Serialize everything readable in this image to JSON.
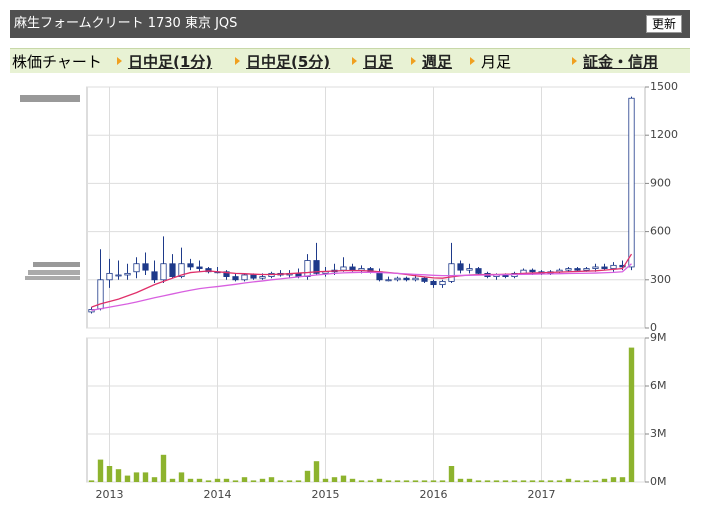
{
  "header": {
    "title": "麻生フォームクリート 1730 東京 JQS",
    "button": "更新"
  },
  "tabs": [
    "株価チャート",
    "日中足(1分)",
    "日中足(5分)",
    "日足",
    "週足",
    "月足",
    "証金・信用"
  ],
  "chart_data": [
    {
      "type": "candlestick",
      "ylim": [
        0,
        1500
      ],
      "yticks": [
        0,
        300,
        600,
        900,
        1200,
        1500
      ],
      "grid": true,
      "up_color": "#ffffff",
      "down_color": "#1e3a8a",
      "edge_color": "#1e3a8a",
      "open": [
        100,
        120,
        300,
        330,
        330,
        350,
        400,
        350,
        300,
        400,
        320,
        400,
        380,
        370,
        350,
        350,
        320,
        300,
        330,
        310,
        320,
        340,
        330,
        340,
        320,
        420,
        340,
        350,
        360,
        380,
        360,
        370,
        350,
        300,
        300,
        310,
        300,
        310,
        290,
        270,
        290,
        400,
        360,
        370,
        340,
        320,
        330,
        320,
        340,
        360,
        350,
        340,
        350,
        360,
        370,
        360,
        370,
        380,
        370,
        390,
        380
      ],
      "high": [
        130,
        490,
        430,
        420,
        400,
        440,
        470,
        420,
        570,
        460,
        500,
        430,
        420,
        380,
        380,
        360,
        340,
        340,
        340,
        340,
        350,
        360,
        360,
        370,
        460,
        530,
        380,
        400,
        440,
        400,
        390,
        380,
        370,
        320,
        320,
        320,
        330,
        320,
        300,
        300,
        530,
        420,
        400,
        380,
        350,
        340,
        340,
        350,
        370,
        370,
        360,
        360,
        370,
        380,
        380,
        380,
        400,
        400,
        410,
        420,
        1440
      ],
      "low": [
        90,
        110,
        250,
        300,
        300,
        310,
        330,
        280,
        280,
        310,
        310,
        360,
        350,
        340,
        340,
        300,
        290,
        290,
        300,
        300,
        310,
        320,
        310,
        310,
        300,
        330,
        320,
        330,
        350,
        350,
        340,
        340,
        290,
        290,
        290,
        290,
        290,
        280,
        250,
        250,
        280,
        340,
        340,
        330,
        310,
        300,
        310,
        310,
        330,
        330,
        330,
        330,
        340,
        350,
        350,
        350,
        350,
        360,
        350,
        360,
        360
      ],
      "close": [
        115,
        300,
        340,
        330,
        340,
        400,
        360,
        300,
        400,
        320,
        400,
        380,
        370,
        350,
        350,
        320,
        300,
        330,
        310,
        320,
        340,
        330,
        340,
        320,
        420,
        340,
        350,
        360,
        380,
        360,
        370,
        350,
        300,
        300,
        310,
        300,
        310,
        290,
        270,
        290,
        400,
        360,
        370,
        340,
        320,
        330,
        320,
        340,
        360,
        350,
        340,
        350,
        360,
        370,
        360,
        370,
        380,
        370,
        390,
        380,
        1430
      ],
      "ma_lines": [
        {
          "color": "#e0306a",
          "values": [
            130,
            150,
            165,
            180,
            200,
            220,
            245,
            270,
            290,
            310,
            330,
            345,
            350,
            355,
            350,
            345,
            340,
            338,
            335,
            333,
            333,
            335,
            338,
            342,
            345,
            350,
            352,
            355,
            357,
            358,
            357,
            355,
            350,
            345,
            340,
            333,
            325,
            318,
            312,
            310,
            318,
            325,
            330,
            332,
            333,
            333,
            334,
            336,
            340,
            342,
            344,
            346,
            348,
            350,
            352,
            354,
            356,
            360,
            365,
            370,
            460
          ]
        },
        {
          "color": "#d860e0",
          "values": [
            110,
            120,
            130,
            140,
            150,
            162,
            175,
            188,
            200,
            212,
            224,
            235,
            245,
            252,
            258,
            265,
            272,
            280,
            287,
            293,
            300,
            306,
            312,
            318,
            324,
            330,
            335,
            340,
            343,
            345,
            346,
            346,
            345,
            343,
            340,
            337,
            334,
            331,
            328,
            326,
            326,
            327,
            328,
            329,
            330,
            331,
            332,
            333,
            334,
            335,
            336,
            337,
            338,
            339,
            340,
            341,
            342,
            344,
            346,
            350,
            400
          ]
        }
      ]
    },
    {
      "type": "bar",
      "color": "#8db32e",
      "ylim": [
        0,
        9000000
      ],
      "yticks": [
        {
          "value": 0,
          "label": "0M"
        },
        {
          "value": 3000000,
          "label": "3M"
        },
        {
          "value": 6000000,
          "label": "6M"
        },
        {
          "value": 9000000,
          "label": "9M"
        }
      ],
      "grid": true,
      "categories": [
        null,
        null,
        "2013",
        null,
        null,
        null,
        null,
        null,
        null,
        null,
        null,
        null,
        null,
        null,
        "2014",
        null,
        null,
        null,
        null,
        null,
        null,
        null,
        null,
        null,
        null,
        null,
        "2015",
        null,
        null,
        null,
        null,
        null,
        null,
        null,
        null,
        null,
        null,
        null,
        "2016",
        null,
        null,
        null,
        null,
        null,
        null,
        null,
        null,
        null,
        null,
        null,
        "2017",
        null,
        null,
        null,
        null,
        null,
        null,
        null,
        null,
        null,
        null
      ],
      "values": [
        100000,
        1400000,
        1000000,
        800000,
        400000,
        600000,
        600000,
        300000,
        1700000,
        200000,
        600000,
        200000,
        200000,
        100000,
        200000,
        200000,
        100000,
        300000,
        100000,
        200000,
        300000,
        100000,
        100000,
        100000,
        700000,
        1300000,
        200000,
        300000,
        400000,
        200000,
        100000,
        100000,
        200000,
        100000,
        100000,
        100000,
        100000,
        100000,
        100000,
        100000,
        1000000,
        200000,
        200000,
        100000,
        100000,
        100000,
        100000,
        100000,
        100000,
        100000,
        100000,
        100000,
        100000,
        200000,
        100000,
        100000,
        100000,
        200000,
        300000,
        300000,
        8400000
      ]
    }
  ]
}
